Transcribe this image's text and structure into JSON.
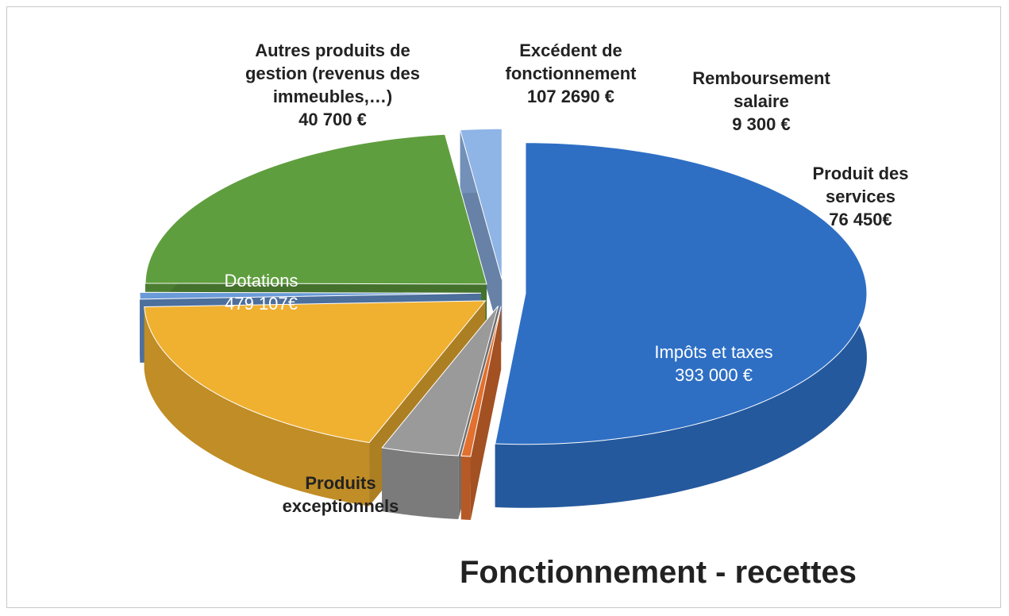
{
  "chart_data": {
    "type": "pie3d",
    "title": "Fonctionnement - recettes",
    "categories": [
      "Excédent de fonctionnement",
      "Remboursement salaire",
      "Produit des services",
      "Impôts et taxes",
      "Produits exceptionnels",
      "Dotations",
      "Autres produits de gestion (revenus des immeubles,…)"
    ],
    "values": [
      1072690,
      9300,
      76450,
      393000,
      15000,
      479107,
      40700
    ],
    "value_labels": [
      "107 2690 €",
      "9 300 €",
      "76 450€",
      "393 000 €",
      null,
      "479 107€",
      "40 700 €"
    ],
    "colors": [
      "#2e6fc4",
      "#e2702f",
      "#9a9a9a",
      "#f0b030",
      "#6a9ad8",
      "#5f9e3e",
      "#8fb4e6"
    ]
  }
}
